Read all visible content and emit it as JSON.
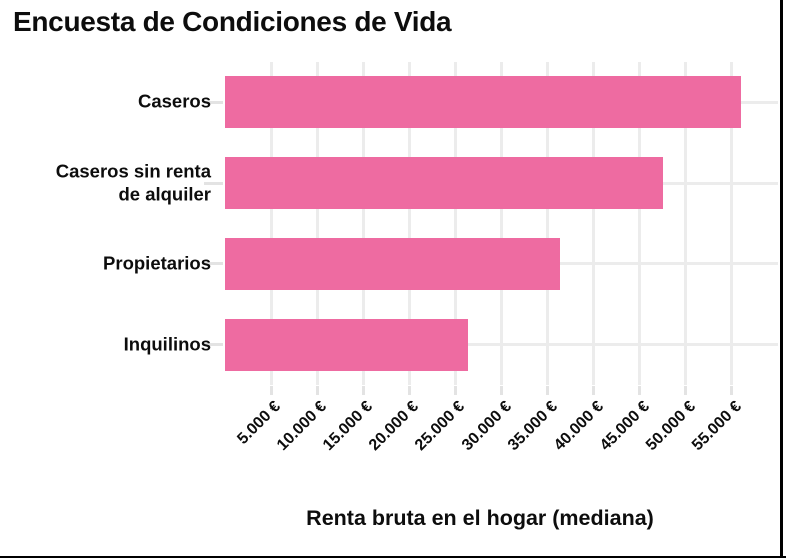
{
  "chart_data": {
    "type": "bar",
    "orientation": "horizontal",
    "title": "Encuesta de Condiciones de Vida",
    "xlabel": "Renta bruta en el hogar (mediana)",
    "categories": [
      "Caseros",
      "Caseros sin renta de alquiler",
      "Propietarios",
      "Inquilinos"
    ],
    "category_label_lines": [
      [
        "Caseros"
      ],
      [
        "Caseros sin renta",
        "de alquiler"
      ],
      [
        "Propietarios"
      ],
      [
        "Inquilinos"
      ]
    ],
    "values": [
      56000,
      47500,
      36300,
      26400
    ],
    "x_axis": {
      "min": 0,
      "max": 60000,
      "tick_values": [
        5000,
        10000,
        15000,
        20000,
        25000,
        30000,
        35000,
        40000,
        45000,
        50000,
        55000
      ],
      "tick_labels": [
        "5.000 €",
        "10.000 €",
        "15.000 €",
        "20.000 €",
        "25.000 €",
        "30.000 €",
        "35.000 €",
        "40.000 €",
        "45.000 €",
        "50.000 €",
        "55.000 €"
      ]
    },
    "grid": true,
    "legend": false,
    "style": {
      "bar_color": "#ee6ba1",
      "grid_color": "#ececec",
      "axis_tick_color": "#e3e3e3",
      "text_color": "#0d0d0d",
      "background": "#ffffff",
      "frame_color": "#000000"
    }
  }
}
